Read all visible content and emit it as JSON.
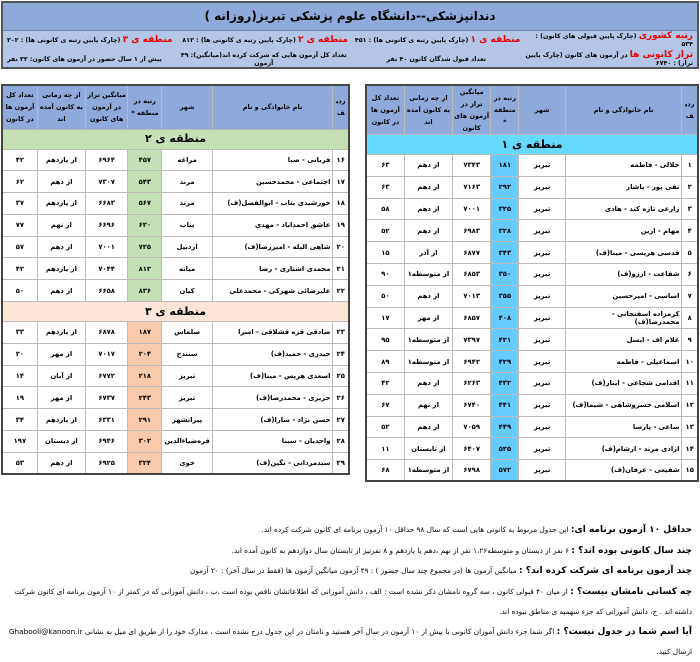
{
  "header": {
    "title": "دندانپزشکی--دانشگاه علوم پزشکی تبریز(روزانه )",
    "info1": [
      {
        "label": "رتبه کشوری",
        "text": " (چارک پایین قبولی های کانون) : ۵۳۴"
      },
      {
        "label": "منطقه ی ۱",
        "text": " (چارک پایین رتبه ی کانونی ها) : ۴۵۱"
      },
      {
        "label": "منطقه ی ۲",
        "text": " (چارک پایین رتبه ی کانونی ها) : ۸۱۲"
      },
      {
        "label": "منطقه ی ۳",
        "text": " (چارک پایین رتبه ی کانونی ها) : ۳۰۲"
      }
    ],
    "info2": [
      {
        "label": "تراز کانونی ها",
        "text": " در آزمون های کانون (چارک پایین تراز) : ۶۷۴۰"
      },
      {
        "label": "",
        "text": "تعداد قبول شدگان کانون ۴۰ نفر"
      },
      {
        "label": "",
        "text": "تعداد کل آزمون هایی که شرکت کرده اند(میانگین): ۴۹ آزمون"
      },
      {
        "label": "",
        "text": "بیش از ۱ سال حضور در آزمون های کانون: ۳۲ نفر"
      }
    ]
  },
  "columns": [
    "ردیف",
    "نام خانوادگی و نام",
    "شهر",
    "رتبه در منطقه *",
    "میانگین تراز در آزمون های کانون",
    "از چه زمانی به کانون آمده اند",
    "تعداد کل آزمون ها در کانون"
  ],
  "region1": {
    "title": "منطقه ی ۱",
    "rows": [
      [
        "۱",
        "جلالی - فاطمه",
        "تبریز",
        "۱۸۱",
        "۷۳۴۳",
        "از دهم",
        "۶۳"
      ],
      [
        "۲",
        "تقی پور - یاشار",
        "تبریز",
        "۲۹۲",
        "۷۱۶۳",
        "از دهم",
        "۶۳"
      ],
      [
        "۳",
        "زارعی تازه کند - هادی",
        "تبریز",
        "۳۲۵",
        "۷۰۰۱",
        "از دهم",
        "۵۸"
      ],
      [
        "۴",
        "مهام - ارین",
        "تبریز",
        "۳۲۸",
        "۶۹۸۳",
        "از دهم",
        "۵۲"
      ],
      [
        "۵",
        "قدسی هریسی - مینا(ف)",
        "تبریز",
        "۳۴۳",
        "۶۸۷۷",
        "از آذر",
        "۱۵"
      ],
      [
        "۶",
        "شفاعت - ارزو(ف)",
        "تبریز",
        "۳۵۰",
        "۶۸۵۳",
        "از متوسطه۱",
        "۹۰"
      ],
      [
        "۷",
        "اساسی - امیرحسین",
        "تبریز",
        "۳۵۵",
        "۷۰۱۳",
        "از دهم",
        "۵۰"
      ],
      [
        "۸",
        "کرمزاده اسفنجانی - محمدرضا(ف)",
        "تبریز",
        "۴۰۸",
        "۶۸۵۷",
        "از مهر",
        "۱۷"
      ],
      [
        "۹",
        "غلام اف - ایسل",
        "تبریز",
        "۴۲۱",
        "۷۳۹۷",
        "از متوسطه۱",
        "۹۵"
      ],
      [
        "۱۰",
        "اسماعیلی - فاطمه",
        "تبریز",
        "۴۲۹",
        "۶۹۴۲",
        "از متوسطه۱",
        "۸۹"
      ],
      [
        "۱۱",
        "اقدامی شجاعی - ایناز(ف)",
        "تبریز",
        "۴۳۲",
        "۶۲۶۳",
        "از دهم",
        "۴۲"
      ],
      [
        "۱۲",
        "اسلامی خسروشاهی - شیما(ف)",
        "تبریز",
        "۴۴۱",
        "۶۷۴۰",
        "از نهم",
        "۶۷"
      ],
      [
        "۱۳",
        "ساعی - پارسا",
        "تبریز",
        "۴۴۹",
        "۷۰۵۹",
        "از دهم",
        "۵۲"
      ],
      [
        "۱۴",
        "ازادی مرند - ارشام(ف)",
        "تبریز",
        "۵۲۵",
        "۶۴۰۷",
        "از تابستان",
        "۱۱"
      ],
      [
        "۱۵",
        "شفیعی - عرفان(ف)",
        "تبریز",
        "۵۷۲",
        "۶۷۹۸",
        "از متوسطه۱",
        "۶۸"
      ]
    ]
  },
  "region2": {
    "title": "منطقه ی ۲",
    "rows": [
      [
        "۱۶",
        "قربانی - صبا",
        "مراغه",
        "۴۵۷",
        "۶۹۶۴",
        "از یازدهم",
        "۴۲"
      ],
      [
        "۱۷",
        "اجتماعی - محمدحسین",
        "مرند",
        "۵۴۳",
        "۷۳۰۷",
        "از دهم",
        "۶۲"
      ],
      [
        "۱۸",
        "خورشیدی بناب - ابوالفضل(ف)",
        "مرند",
        "۵۶۷",
        "۶۶۸۳",
        "از یازدهم",
        "۳۷"
      ],
      [
        "۱۹",
        "عاشق احمداباد - مهدی",
        "بناب",
        "۶۲۰",
        "۶۶۹۶",
        "از نهم",
        "۷۷"
      ],
      [
        "۲۰",
        "شاهی الیله - امیررضا(ف)",
        "اردبیل",
        "۷۲۵",
        "۷۰۰۱",
        "از دهم",
        "۵۷"
      ],
      [
        "۲۱",
        "محمدی اشناری - رضا",
        "میانه",
        "۸۱۲",
        "۷۰۴۴",
        "از یازدهم",
        "۴۲"
      ],
      [
        "۲۲",
        "علیرضائی شهرکی - محمدعلی",
        "کیان",
        "۸۳۶",
        "۶۶۵۸",
        "از دهم",
        "۵۰"
      ]
    ]
  },
  "region3": {
    "title": "منطقه ی ۳",
    "rows": [
      [
        "۲۳",
        "صادقی قره قشلاقی - اسرا",
        "سلماس",
        "۱۸۷",
        "۶۸۷۸",
        "از یازدهم",
        "۳۳"
      ],
      [
        "۲۴",
        "حیدری - حمید(ف)",
        "سنندج",
        "۲۰۴",
        "۷۰۱۷",
        "از مهر",
        "۲۰"
      ],
      [
        "۲۵",
        "اسعدی هریس - مینا(ف)",
        "تبریز",
        "۲۱۸",
        "۶۷۷۲",
        "از آبان",
        "۱۴"
      ],
      [
        "۲۶",
        "حریری - محمدرضا(ف)",
        "تبریز",
        "۲۴۳",
        "۶۷۳۷",
        "از مهر",
        "۱۹"
      ],
      [
        "۲۷",
        "حسن نژاد - سارا(ف)",
        "پیرانشهر",
        "۲۹۱",
        "۶۳۳۱",
        "از یازدهم",
        "۳۴"
      ],
      [
        "۲۸",
        "واحدیان - سینا",
        "قره‌ضیاءالدین",
        "۳۰۲",
        "۶۹۴۶",
        "از دبستان",
        "۱۹۷"
      ],
      [
        "۲۹",
        "سیدمردانی - نگین(ف)",
        "خوی",
        "۳۲۴",
        "۶۹۲۵",
        "از دهم",
        "۵۳"
      ]
    ]
  },
  "footer": [
    {
      "q": "حداقل ۱۰ آزمون برنامه ای:",
      "a": " این جدول مربوط به کانونی هایی است که سال ۹۸ حداقل ۱۰ آزمون برنامه ای کانون شرکت کرده اند."
    },
    {
      "q": "چند سال کانونی بوده اند؟ :",
      "a": " ۶ نفر از دبستان و متوسطه۱،۲۶ نفر از نهم ،دهم یا یازدهم و ۸ نفرنیز از تابستان سال دوازدهم به کانون آمده اند."
    },
    {
      "q": "چند آزمون برنامه ای شرکت کرده اند؟ :",
      "a": " میانگین آزمون ها (در مجموع چند سال حضور ) : ۴۹ آزمون     میانگین آزمون ها (فقط در سال آخر) : ۲۰ آزمون"
    },
    {
      "q": "چه کسانی نامشان نیست؟ :",
      "a": " از میان ۴۰ قبولی کانون ، سه گروه نامشان ذکر نشده است : الف ، دانش آموزانی که اطلاعاتشان ناقص بوده است .ب ، دانش آموزانی که در کمتر از ۱۰ آزمون برنامه ای کانون شرکت داشته اند . ج، دانش آموزانی که جزء سهمیه ی مناطق نبوده اند."
    },
    {
      "q": "آیا اسم شما در جدول نیست؟ :",
      "a": " اگر شما جزء دانش آموزان کانونی با بیش از ۱۰ آزمون در سال آخر هستید و نامتان در این جدول درج نشده است ، مدارک خود را از طریق ای میل به نشانی Ghabooli@kanoon.ir ارسال کنید."
    }
  ],
  "colors": {
    "header": "#8eaadb",
    "region1": "#66d9ff",
    "region2": "#c5e0b4",
    "region3": "#fce4d6",
    "accent": "#ee0000"
  }
}
